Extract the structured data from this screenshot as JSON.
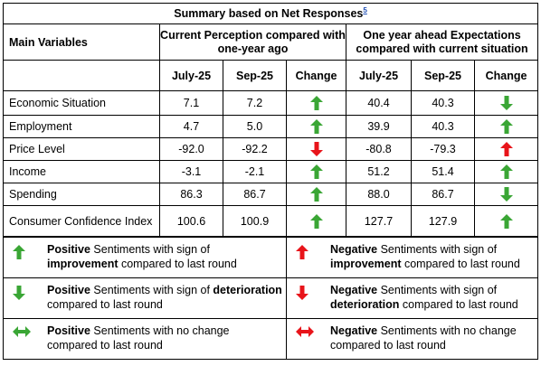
{
  "title": "Summary based on Net Responses",
  "footnote_ref": "5",
  "header": {
    "main_variables": "Main Variables",
    "group1": "Current Perception compared with one-year ago",
    "group2": "One year ahead Expectations compared with current situation",
    "col_july": "July-25",
    "col_sep": "Sep-25",
    "col_change": "Change"
  },
  "rows": [
    {
      "label": "Economic Situation",
      "cp_jul": "7.1",
      "cp_sep": "7.2",
      "cp_change": "up-green",
      "ex_jul": "40.4",
      "ex_sep": "40.3",
      "ex_change": "down-green"
    },
    {
      "label": "Employment",
      "cp_jul": "4.7",
      "cp_sep": "5.0",
      "cp_change": "up-green",
      "ex_jul": "39.9",
      "ex_sep": "40.3",
      "ex_change": "up-green"
    },
    {
      "label": "Price Level",
      "cp_jul": "-92.0",
      "cp_sep": "-92.2",
      "cp_change": "down-red",
      "ex_jul": "-80.8",
      "ex_sep": "-79.3",
      "ex_change": "up-red"
    },
    {
      "label": "Income",
      "cp_jul": "-3.1",
      "cp_sep": "-2.1",
      "cp_change": "up-green",
      "ex_jul": "51.2",
      "ex_sep": "51.4",
      "ex_change": "up-green"
    },
    {
      "label": "Spending",
      "cp_jul": "86.3",
      "cp_sep": "86.7",
      "cp_change": "up-green",
      "ex_jul": "88.0",
      "ex_sep": "86.7",
      "ex_change": "down-green"
    },
    {
      "label": "Consumer Confidence Index",
      "cp_jul": "100.6",
      "cp_sep": "100.9",
      "cp_change": "up-green",
      "ex_jul": "127.7",
      "ex_sep": "127.9",
      "ex_change": "up-green"
    }
  ],
  "legend": {
    "pos_improve": {
      "bold1": "Positive",
      "t1": " Sentiments with sign of ",
      "bold2": "improvement",
      "t2": " compared to last round"
    },
    "neg_improve": {
      "bold1": "Negative",
      "t1": " Sentiments with sign of ",
      "bold2": "improvement",
      "t2": " compared to last round"
    },
    "pos_deter": {
      "bold1": "Positive",
      "t1": " Sentiments with sign of ",
      "bold2": "deterioration",
      "t2": " compared to last round"
    },
    "neg_deter": {
      "bold1": "Negative",
      "t1": " Sentiments with sign of ",
      "bold2": "deterioration",
      "t2": " compared to last round"
    },
    "pos_nochange": {
      "bold1": "Positive",
      "t1": " Sentiments with no change compared to last round"
    },
    "neg_nochange": {
      "bold1": "Negative",
      "t1": " Sentiments with no change compared to last round"
    }
  },
  "colors": {
    "green": "#3aa635",
    "red": "#e8141a",
    "link": "#1f4fb5"
  }
}
